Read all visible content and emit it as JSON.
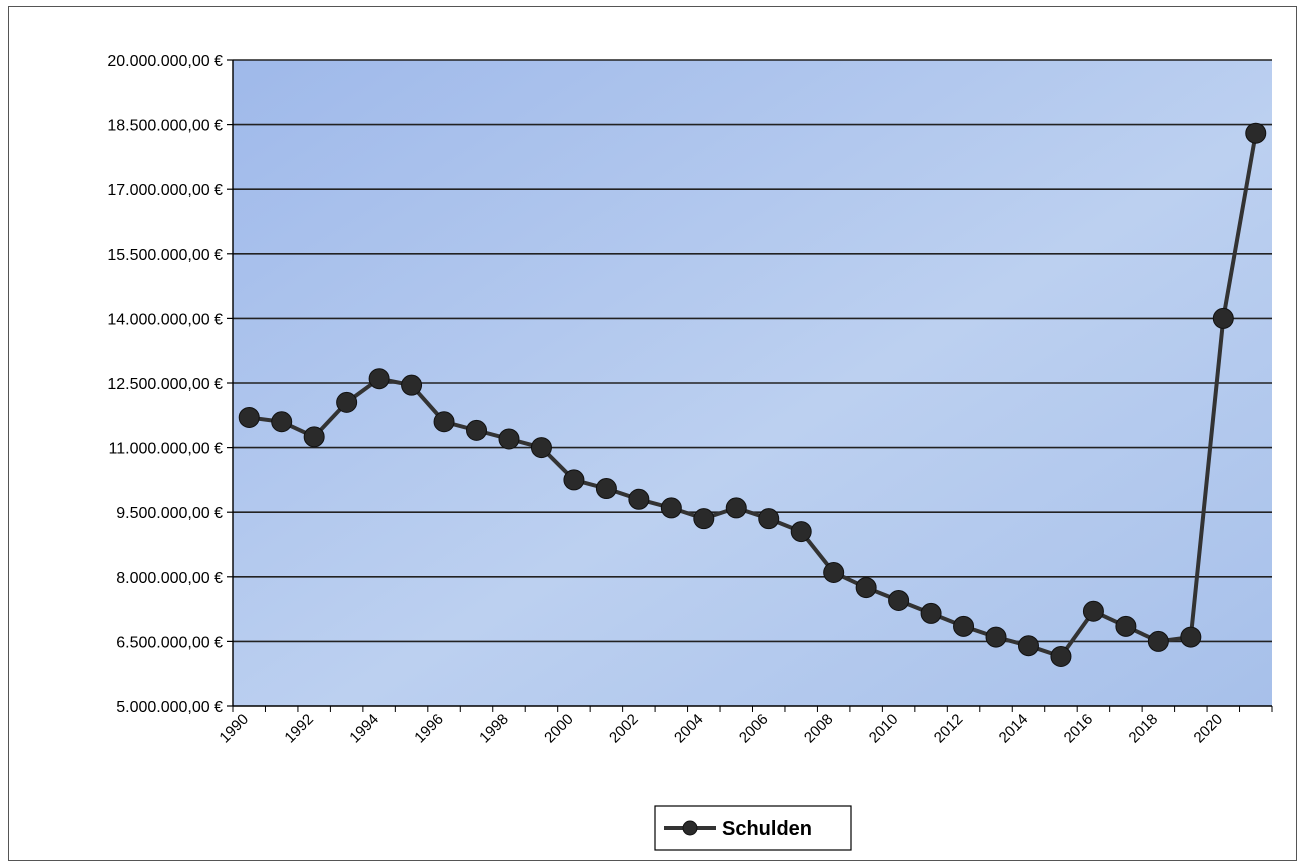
{
  "chart_data": {
    "type": "line",
    "title": "",
    "xlabel": "",
    "ylabel": "",
    "ylim": [
      5000000,
      20000000
    ],
    "y_ticks": [
      5000000,
      6500000,
      8000000,
      9500000,
      11000000,
      12500000,
      14000000,
      15500000,
      17000000,
      18500000,
      20000000
    ],
    "y_tick_labels": [
      "5.000.000,00 €",
      "6.500.000,00 €",
      "8.000.000,00 €",
      "9.500.000,00 €",
      "11.000.000,00 €",
      "12.500.000,00 €",
      "14.000.000,00 €",
      "15.500.000,00 €",
      "17.000.000,00 €",
      "18.500.000,00 €",
      "20.000.000,00 €"
    ],
    "x_tick_labels": [
      "1990",
      "1992",
      "1994",
      "1996",
      "1998",
      "2000",
      "2002",
      "2004",
      "2006",
      "2008",
      "2010",
      "2012",
      "2014",
      "2016",
      "2018",
      "2020"
    ],
    "x": [
      1990,
      1991,
      1992,
      1993,
      1994,
      1995,
      1996,
      1997,
      1998,
      1999,
      2000,
      2001,
      2002,
      2003,
      2004,
      2005,
      2006,
      2007,
      2008,
      2009,
      2010,
      2011,
      2012,
      2013,
      2014,
      2015,
      2016,
      2017,
      2018,
      2019,
      2020,
      2021
    ],
    "grid": true,
    "legend_position": "bottom-center",
    "series": [
      {
        "name": "Schulden",
        "values": [
          11700000,
          11600000,
          11250000,
          12050000,
          12600000,
          12450000,
          11600000,
          11400000,
          11200000,
          11000000,
          10250000,
          10050000,
          9800000,
          9600000,
          9350000,
          9600000,
          9350000,
          9050000,
          8100000,
          7750000,
          7450000,
          7150000,
          6850000,
          6600000,
          6400000,
          6150000,
          7200000,
          6850000,
          6500000,
          6600000,
          14000000,
          18300000
        ],
        "color": "#333333"
      }
    ],
    "colors": {
      "plot_background": "#b4c8ec",
      "gridline": "#222222",
      "line": "#333333",
      "marker": "#2a2a2a"
    }
  }
}
